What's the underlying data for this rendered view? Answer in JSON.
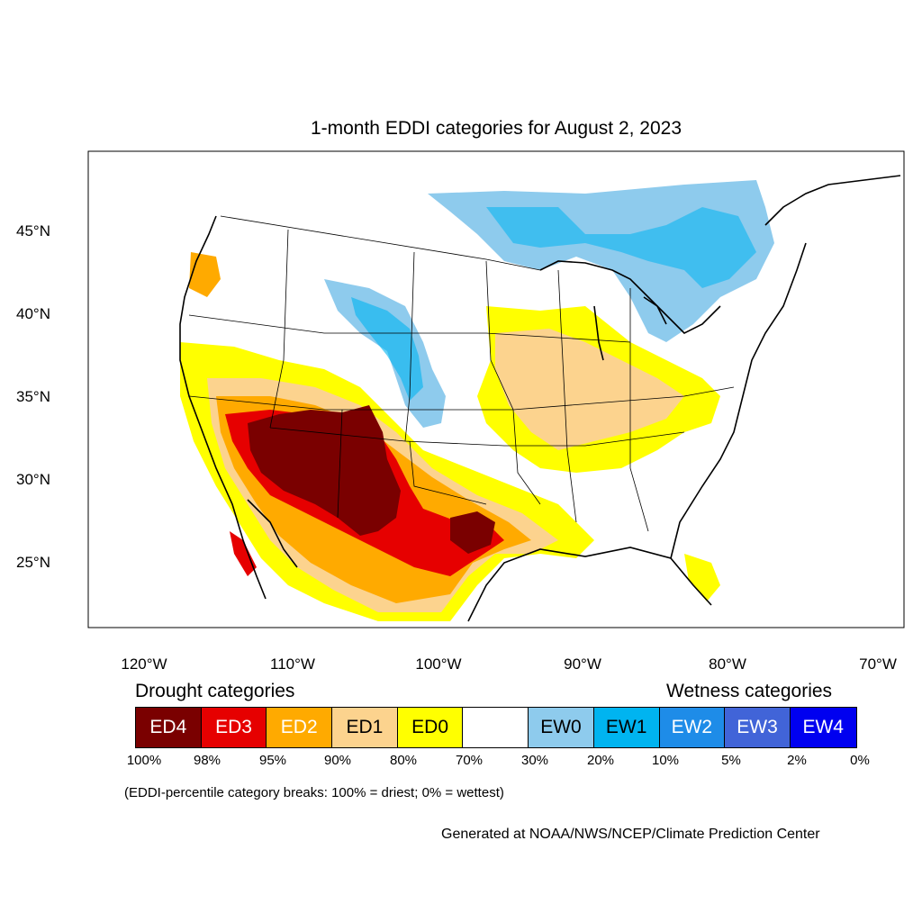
{
  "title": "1-month EDDI categories for August 2, 2023",
  "axes": {
    "lat_ticks": [
      "45°N",
      "40°N",
      "35°N",
      "30°N",
      "25°N"
    ],
    "lon_ticks": [
      "120°W",
      "110°W",
      "100°W",
      "90°W",
      "80°W",
      "70°W"
    ]
  },
  "legend": {
    "drought_heading": "Drought categories",
    "wetness_heading": "Wetness categories",
    "categories": [
      {
        "label": "ED4",
        "color": "#7a0000",
        "text_color": "#ffffff"
      },
      {
        "label": "ED3",
        "color": "#e60000",
        "text_color": "#ffffff"
      },
      {
        "label": "ED2",
        "color": "#ffaa00",
        "text_color": "#ffffff"
      },
      {
        "label": "ED1",
        "color": "#fcd38e",
        "text_color": "#000000"
      },
      {
        "label": "ED0",
        "color": "#ffff00",
        "text_color": "#000000"
      },
      {
        "label": "",
        "color": "#ffffff",
        "text_color": "#000000"
      },
      {
        "label": "EW0",
        "color": "#8ecbed",
        "text_color": "#000000"
      },
      {
        "label": "EW1",
        "color": "#00b4f0",
        "text_color": "#000000"
      },
      {
        "label": "EW2",
        "color": "#1e8ce8",
        "text_color": "#ffffff"
      },
      {
        "label": "EW3",
        "color": "#4164d8",
        "text_color": "#ffffff"
      },
      {
        "label": "EW4",
        "color": "#0000f0",
        "text_color": "#ffffff"
      }
    ],
    "percentiles": [
      "100%",
      "98%",
      "95%",
      "90%",
      "80%",
      "70%",
      "30%",
      "20%",
      "10%",
      "5%",
      "2%",
      "0%"
    ]
  },
  "note": "(EDDI-percentile category breaks: 100% = driest; 0% = wettest)",
  "credit": "Generated at NOAA/NWS/NCEP/Climate Prediction Center"
}
